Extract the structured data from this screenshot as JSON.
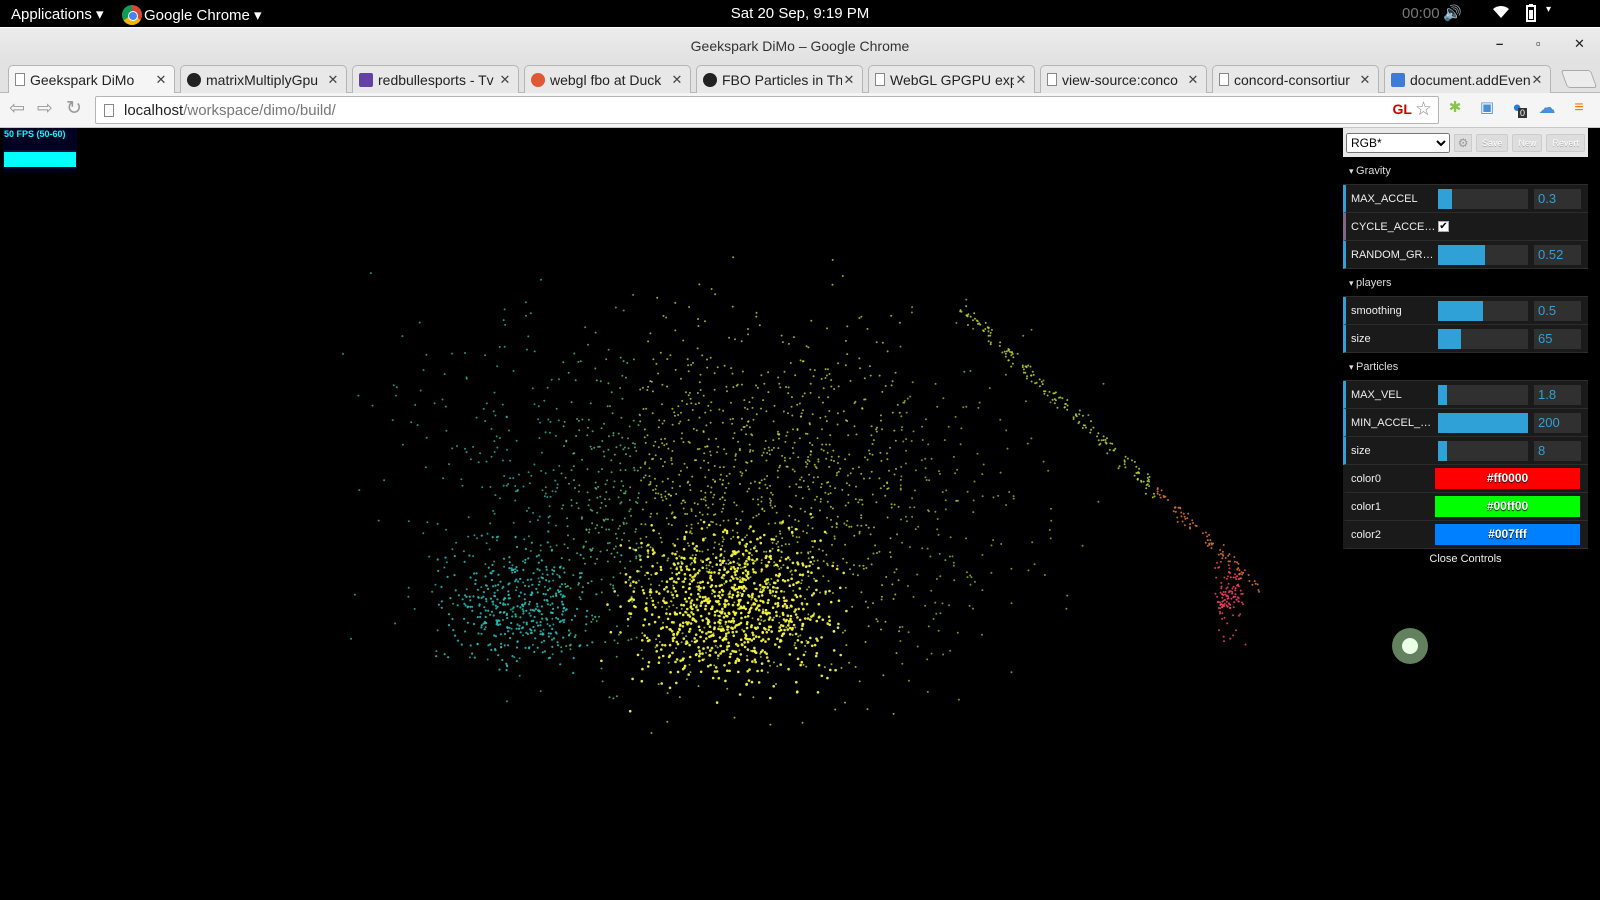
{
  "topbar": {
    "applications": "Applications ▾",
    "app_name": "Google Chrome ▾",
    "datetime": "Sat 20 Sep,  9:19 PM",
    "timer": "00:00"
  },
  "window": {
    "title": "Geekspark DiMo – Google Chrome",
    "minimize": "–",
    "maximize": "▫",
    "close": "✕"
  },
  "tabs": [
    {
      "label": "Geekspark DiMo",
      "icon": "page"
    },
    {
      "label": "matrixMultiplyGpu",
      "icon": "github"
    },
    {
      "label": "redbullesports - Tv",
      "icon": "twitch"
    },
    {
      "label": "webgl fbo at Duck",
      "icon": "duckduckgo"
    },
    {
      "label": "FBO Particles in Th",
      "icon": "github"
    },
    {
      "label": "WebGL GPGPU exp",
      "icon": "page"
    },
    {
      "label": "view-source:conco",
      "icon": "page"
    },
    {
      "label": "concord-consortiur",
      "icon": "page"
    },
    {
      "label": "document.addEven",
      "icon": "docs"
    }
  ],
  "address": {
    "host": "localhost",
    "path": "/workspace/dimo/build/",
    "gl_badge": "GL",
    "ext_badge": "0"
  },
  "stats": {
    "fps": "50 FPS (50-60)"
  },
  "gui": {
    "preset": "RGB*",
    "save": "Save",
    "new": "New",
    "revert": "Revert",
    "close": "Close Controls",
    "folders": {
      "gravity": "Gravity",
      "players": "players",
      "particles": "Particles"
    },
    "gravity": {
      "max_accel": {
        "label": "MAX_ACCEL",
        "value": "0.3",
        "fill": 0.15
      },
      "cycle_accel": {
        "label": "CYCLE_ACCEL...",
        "checked": true
      },
      "random_gra": {
        "label": "RANDOM_GRA...",
        "value": "0.52",
        "fill": 0.52
      }
    },
    "players": {
      "smoothing": {
        "label": "smoothing",
        "value": "0.5",
        "fill": 0.5
      },
      "size": {
        "label": "size",
        "value": "65",
        "fill": 0.25
      }
    },
    "particles": {
      "max_vel": {
        "label": "MAX_VEL",
        "value": "1.8",
        "fill": 0.1
      },
      "min_accel_di": {
        "label": "MIN_ACCEL_DI...",
        "value": "200",
        "fill": 1.0
      },
      "size": {
        "label": "size",
        "value": "8",
        "fill": 0.1
      },
      "color0": {
        "label": "color0",
        "value": "#ff0000"
      },
      "color1": {
        "label": "color1",
        "value": "#00ff00"
      },
      "color2": {
        "label": "color2",
        "value": "#007fff"
      }
    }
  }
}
